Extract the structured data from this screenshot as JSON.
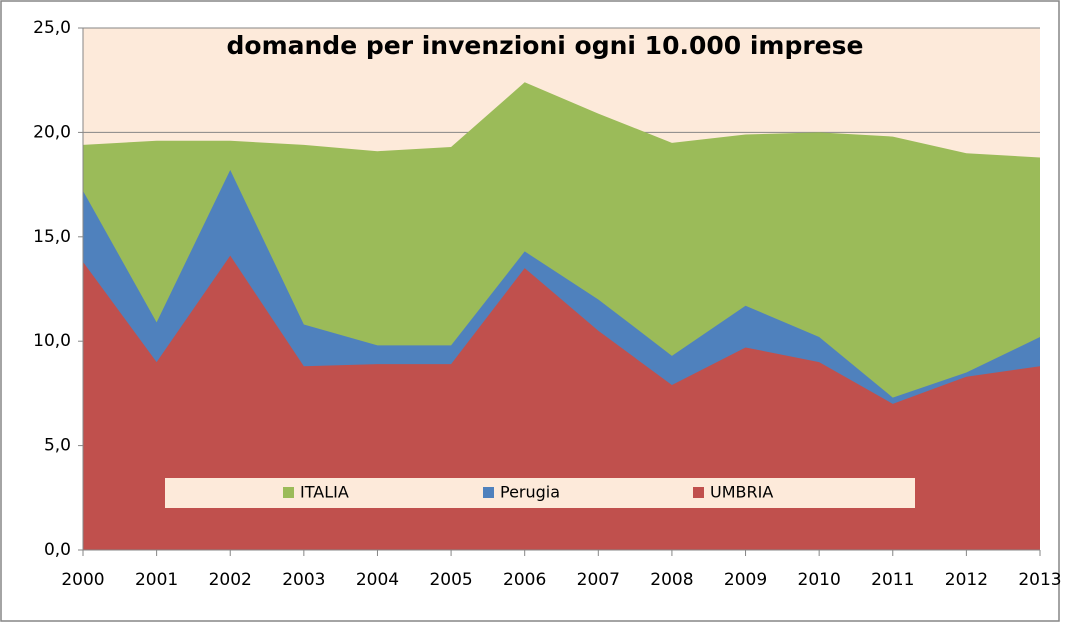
{
  "chart_data": {
    "type": "area",
    "title": "domande per invenzioni ogni 10.000 imprese",
    "categories": [
      "2000",
      "2001",
      "2002",
      "2003",
      "2004",
      "2005",
      "2006",
      "2007",
      "2008",
      "2009",
      "2010",
      "2011",
      "2012",
      "2013"
    ],
    "series": [
      {
        "name": "ITALIA",
        "color": "#9bbb59",
        "values": [
          19.4,
          19.6,
          19.6,
          19.4,
          19.1,
          19.3,
          22.4,
          20.9,
          19.5,
          19.9,
          20.0,
          19.8,
          19.0,
          18.8
        ]
      },
      {
        "name": "Perugia",
        "color": "#4f81bd",
        "values": [
          17.2,
          10.9,
          18.2,
          10.8,
          9.8,
          9.8,
          14.3,
          12.0,
          9.3,
          11.7,
          10.2,
          7.3,
          8.5,
          10.2
        ]
      },
      {
        "name": "UMBRIA",
        "color": "#c0504d",
        "values": [
          13.8,
          9.0,
          14.1,
          8.8,
          8.9,
          8.9,
          13.5,
          10.5,
          7.9,
          9.7,
          9.0,
          7.0,
          8.3,
          8.8
        ]
      }
    ],
    "ylim": [
      0,
      25
    ],
    "yticks": [
      {
        "value": 0,
        "label": "0,0"
      },
      {
        "value": 5,
        "label": "5,0"
      },
      {
        "value": 10,
        "label": "10,0"
      },
      {
        "value": 15,
        "label": "15,0"
      },
      {
        "value": 20,
        "label": "20,0"
      },
      {
        "value": 25,
        "label": "25,0"
      }
    ],
    "grid": true,
    "legend": "bottom"
  }
}
